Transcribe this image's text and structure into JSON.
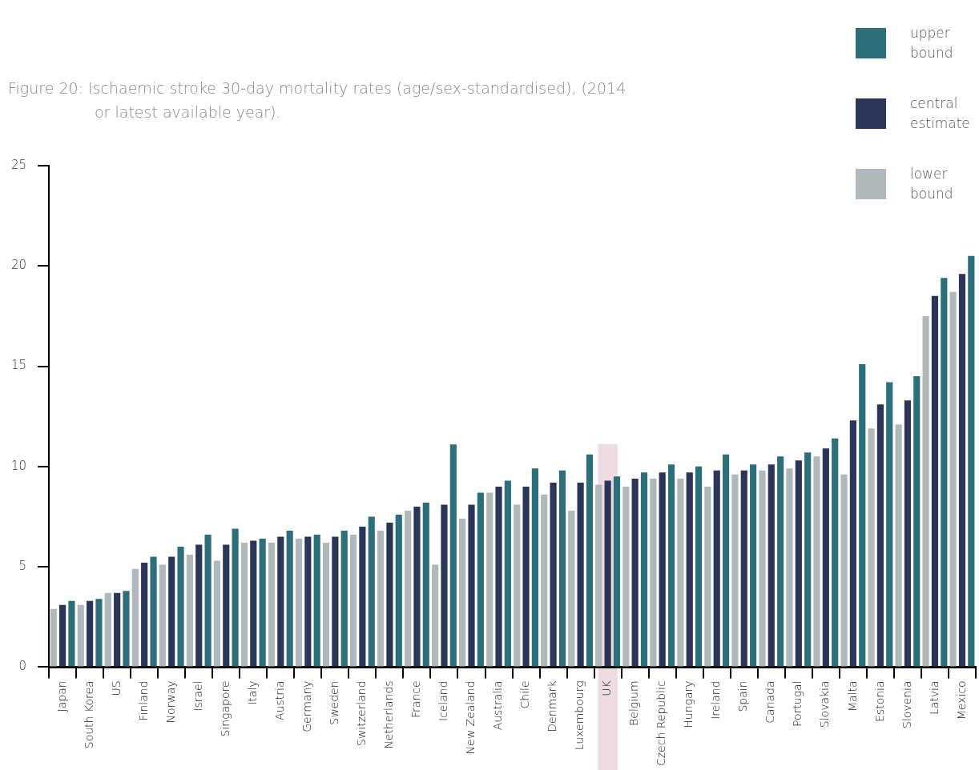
{
  "chart_data": {
    "type": "bar",
    "title": "Figure 20: Ischaemic stroke 30-day mortality rates (age/sex-standardised), (2014 or latest available year).",
    "categories": [
      "Japan",
      "South Korea",
      "US",
      "Finland",
      "Norway",
      "Israel",
      "Singapore",
      "Italy",
      "Austria",
      "Germany",
      "Sweden",
      "Switzerland",
      "Netherlands",
      "France",
      "Iceland",
      "New Zealand",
      "Australia",
      "Chile",
      "Denmark",
      "Luxembourg",
      "UK",
      "Belgium",
      "Czech Republic",
      "Hungary",
      "Ireland",
      "Spain",
      "Canada",
      "Portugal",
      "Slovakia",
      "Malta",
      "Estonia",
      "Slovenia",
      "Latvia",
      "Mexico"
    ],
    "series": [
      {
        "name": "lower bound",
        "color": "#afb8bb",
        "values": [
          2.9,
          3.1,
          3.7,
          4.9,
          5.1,
          5.6,
          5.3,
          6.2,
          6.2,
          6.4,
          6.2,
          6.6,
          6.8,
          7.8,
          5.1,
          7.4,
          8.7,
          8.1,
          8.6,
          7.8,
          9.1,
          9.0,
          9.4,
          9.4,
          9.0,
          9.6,
          9.8,
          9.9,
          10.5,
          9.6,
          11.9,
          12.1,
          17.5,
          18.7
        ]
      },
      {
        "name": "central estimate",
        "color": "#2a3558",
        "values": [
          3.1,
          3.3,
          3.7,
          5.2,
          5.5,
          6.1,
          6.1,
          6.3,
          6.5,
          6.5,
          6.5,
          7.0,
          7.2,
          8.0,
          8.1,
          8.1,
          9.0,
          9.0,
          9.2,
          9.2,
          9.3,
          9.4,
          9.7,
          9.7,
          9.8,
          9.8,
          10.1,
          10.3,
          10.9,
          12.3,
          13.1,
          13.3,
          18.5,
          19.6
        ]
      },
      {
        "name": "upper bound",
        "color": "#2c6f7a",
        "values": [
          3.3,
          3.4,
          3.8,
          5.5,
          6.0,
          6.6,
          6.9,
          6.4,
          6.8,
          6.6,
          6.8,
          7.5,
          7.6,
          8.2,
          11.1,
          8.7,
          9.3,
          9.9,
          9.8,
          10.6,
          9.5,
          9.7,
          10.1,
          10.0,
          10.6,
          10.1,
          10.5,
          10.7,
          11.4,
          15.1,
          14.2,
          14.5,
          19.4,
          20.5
        ]
      }
    ],
    "ylim": [
      0,
      25
    ],
    "yticks": [
      0,
      5,
      10,
      15,
      20,
      25
    ],
    "grid": false,
    "legend": "top right",
    "bands": [
      {
        "axis": "x",
        "from": "UK",
        "to": "UK",
        "color": "#e8d5d8"
      }
    ]
  }
}
